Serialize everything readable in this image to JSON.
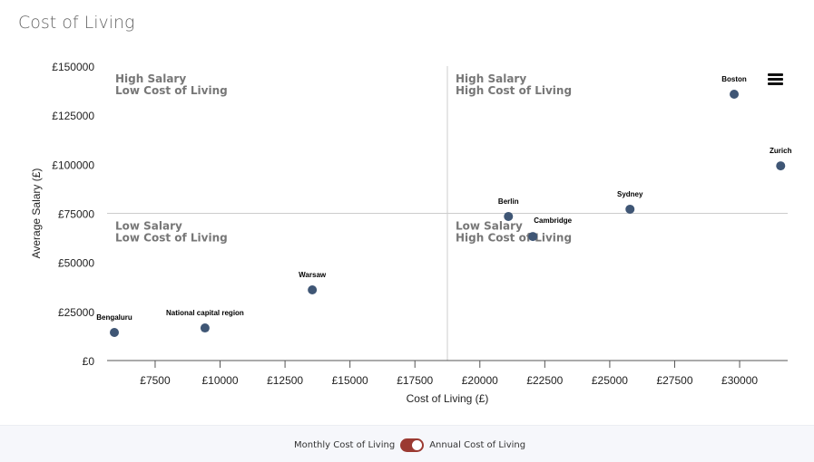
{
  "title": "Cost of Living",
  "chart_data": {
    "type": "scatter",
    "xlabel": "Cost of Living (£)",
    "ylabel": "Average Salary (£)",
    "xlim": [
      5650,
      31850
    ],
    "ylim": [
      0,
      150000
    ],
    "xticks": [
      7500,
      10000,
      12500,
      15000,
      17500,
      20000,
      22500,
      25000,
      27500,
      30000
    ],
    "yticks": [
      0,
      25000,
      50000,
      75000,
      100000,
      125000,
      150000
    ],
    "tick_prefix": "£",
    "grid": false,
    "point_color": "#3f5675",
    "points": [
      {
        "label": "Bengaluru",
        "x": 5930,
        "y": 14300
      },
      {
        "label": "National capital region",
        "x": 9420,
        "y": 16600
      },
      {
        "label": "Warsaw",
        "x": 13550,
        "y": 36000
      },
      {
        "label": "Berlin",
        "x": 21100,
        "y": 73400
      },
      {
        "label": "Cambridge",
        "x": 22040,
        "y": 63200
      },
      {
        "label": "Sydney",
        "x": 25780,
        "y": 77100
      },
      {
        "label": "Boston",
        "x": 29790,
        "y": 135700
      },
      {
        "label": "Zurich",
        "x": 31580,
        "y": 99200
      }
    ],
    "quadrant_split": {
      "x": 18750,
      "y": 75000
    },
    "quadrants": [
      {
        "line1": "High Salary",
        "line2": "Low Cost of Living",
        "pos": "top-left"
      },
      {
        "line1": "High Salary",
        "line2": "High Cost of Living",
        "pos": "top-right"
      },
      {
        "line1": "Low Salary",
        "line2": "Low Cost of Living",
        "pos": "bottom-left"
      },
      {
        "line1": "Low Salary",
        "line2": "High Cost of Living",
        "pos": "bottom-right"
      }
    ]
  },
  "toggle": {
    "left_label": "Monthly Cost of Living",
    "right_label": "Annual Cost of Living",
    "state": "annual",
    "color": "#9b3a32"
  }
}
